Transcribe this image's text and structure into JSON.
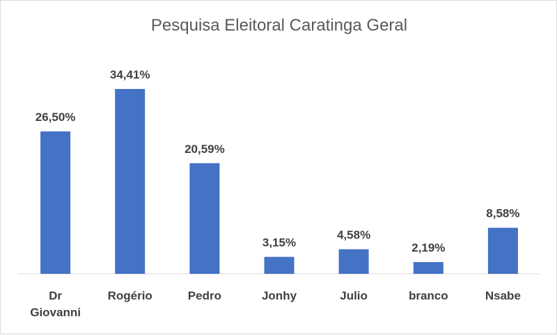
{
  "chart_data": {
    "type": "bar",
    "title": "Pesquisa Eleitoral Caratinga Geral",
    "categories": [
      [
        "Dr",
        "Giovanni"
      ],
      [
        "Rogério"
      ],
      [
        "Pedro"
      ],
      [
        "Jonhy"
      ],
      [
        "Julio"
      ],
      [
        "branco"
      ],
      [
        "Nsabe"
      ]
    ],
    "values": [
      26.5,
      34.41,
      20.59,
      3.15,
      4.58,
      2.19,
      8.58
    ],
    "labels": [
      "26,50%",
      "34,41%",
      "20,59%",
      "3,15%",
      "4,58%",
      "2,19%",
      "8,58%"
    ],
    "bar_color": "#4472C4",
    "axis_color": "#d9d9d9",
    "grid": false,
    "legend": "none"
  }
}
